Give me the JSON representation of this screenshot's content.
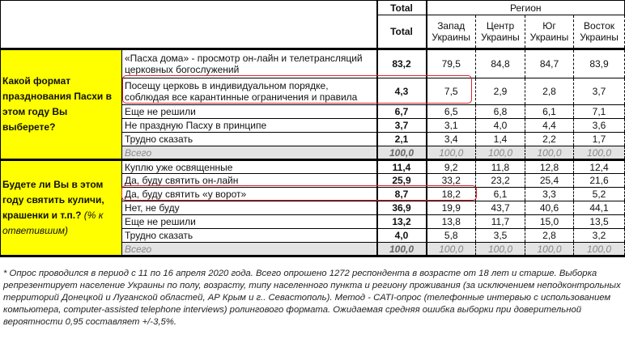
{
  "header": {
    "total_top": "Total",
    "region": "Регион",
    "total": "Total",
    "regions": [
      "Запад Украины",
      "Центр Украины",
      "Юг Украины",
      "Восток Украины"
    ]
  },
  "sections": [
    {
      "question": "Какой формат празднования Пасхи в этом году Вы выберете?",
      "note": "",
      "rows": [
        {
          "label": "«Пасха дома» - просмотр он-лайн и телетрансляций церковных богослужений",
          "values": [
            "83,2",
            "79,5",
            "84,8",
            "84,7",
            "83,9"
          ]
        },
        {
          "label": "Посещу церковь в индивидуальном порядке, соблюдая все карантинные ограничения и правила",
          "values": [
            "4,3",
            "7,5",
            "2,9",
            "2,8",
            "3,7"
          ],
          "highlighted": true
        },
        {
          "label": "Еще не решили",
          "values": [
            "6,7",
            "6,5",
            "6,8",
            "6,1",
            "7,1"
          ]
        },
        {
          "label": "Не праздную Пасху в принципе",
          "values": [
            "3,7",
            "3,1",
            "4,0",
            "4,4",
            "3,6"
          ]
        },
        {
          "label": "Трудно сказать",
          "values": [
            "2,1",
            "3,4",
            "1,4",
            "2,2",
            "1,7"
          ]
        },
        {
          "label": "Всего",
          "values": [
            "100,0",
            "100,0",
            "100,0",
            "100,0",
            "100,0"
          ],
          "total_row": true
        }
      ]
    },
    {
      "question": "Будете ли Вы в этом году святить куличи, крашенки и т.п.?",
      "note": "(% к ответившим)",
      "rows": [
        {
          "label": "Куплю уже освященные",
          "values": [
            "11,4",
            "9,2",
            "11,8",
            "12,8",
            "12,4"
          ]
        },
        {
          "label": "Да, буду святить он-лайн",
          "values": [
            "25,9",
            "33,2",
            "23,2",
            "25,4",
            "21,6"
          ]
        },
        {
          "label": "Да, буду святить «у ворот»",
          "values": [
            "8,7",
            "18,2",
            "6,1",
            "3,3",
            "5,2"
          ],
          "highlighted": true
        },
        {
          "label": "Нет, не буду",
          "values": [
            "36,9",
            "19,9",
            "43,7",
            "40,6",
            "44,1"
          ]
        },
        {
          "label": "Еще не решили",
          "values": [
            "13,2",
            "13,8",
            "11,7",
            "15,0",
            "13,5"
          ]
        },
        {
          "label": "Трудно сказать",
          "values": [
            "4,0",
            "5,8",
            "3,5",
            "2,8",
            "3,2"
          ]
        },
        {
          "label": "Всего",
          "values": [
            "100,0",
            "100,0",
            "100,0",
            "100,0",
            "100,0"
          ],
          "total_row": true
        }
      ]
    }
  ],
  "footnote": "* Опрос проводился в период с 11 по 16 апреля 2020 года. Всего опрошено 1272 респондента в возрасте от 18 лет и старше. Выборка репрезентирует население Украины по полу, возрасту, типу населенного пункта и региону проживания (за исключением неподконтрольных территорий Донецкой и Луганской областей, АР Крым и г.. Севастополь). Метод - CATI-опрос (телефонные интервью с использованием компьютера, computer-assisted telephone interviews) ролингового формата. Ожидаемая средняя ошибка выборки при доверительной вероятности 0,95 составляет +/-3,5%.",
  "colors": {
    "question_bg": "#ffff00",
    "highlight": "#d9262c",
    "total_row_bg": "#e3e3e3"
  }
}
